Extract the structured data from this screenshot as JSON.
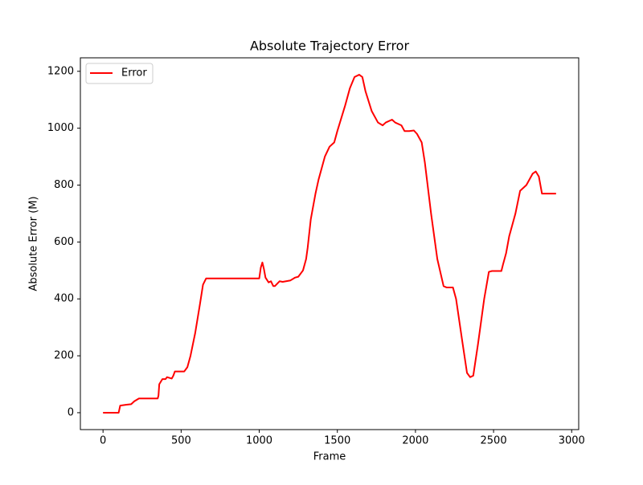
{
  "chart_data": {
    "type": "line",
    "title": "Absolute Trajectory Error",
    "xlabel": "Frame",
    "ylabel": "Absolute Error (M)",
    "x": [
      0,
      100,
      110,
      150,
      180,
      200,
      230,
      350,
      355,
      360,
      380,
      400,
      410,
      440,
      450,
      460,
      520,
      540,
      560,
      590,
      620,
      640,
      660,
      1000,
      1010,
      1020,
      1030,
      1040,
      1060,
      1075,
      1090,
      1100,
      1130,
      1150,
      1200,
      1230,
      1250,
      1280,
      1300,
      1310,
      1330,
      1360,
      1380,
      1420,
      1450,
      1480,
      1500,
      1550,
      1580,
      1610,
      1640,
      1660,
      1680,
      1720,
      1760,
      1790,
      1810,
      1850,
      1870,
      1910,
      1930,
      1960,
      1990,
      2010,
      2040,
      2060,
      2100,
      2140,
      2180,
      2200,
      2240,
      2260,
      2300,
      2330,
      2350,
      2370,
      2400,
      2440,
      2470,
      2490,
      2550,
      2560,
      2580,
      2600,
      2640,
      2670,
      2710,
      2750,
      2770,
      2790,
      2810,
      2850,
      2900
    ],
    "series": [
      {
        "name": "Error",
        "color": "#ff0000",
        "values": [
          0,
          0,
          25,
          28,
          30,
          40,
          50,
          50,
          60,
          100,
          118,
          118,
          125,
          120,
          130,
          145,
          145,
          160,
          200,
          280,
          380,
          450,
          472,
          472,
          510,
          528,
          505,
          475,
          458,
          462,
          445,
          445,
          462,
          460,
          465,
          475,
          478,
          500,
          540,
          580,
          680,
          770,
          820,
          900,
          935,
          950,
          990,
          1080,
          1140,
          1180,
          1188,
          1180,
          1130,
          1060,
          1020,
          1010,
          1020,
          1030,
          1020,
          1010,
          990,
          990,
          992,
          980,
          950,
          880,
          700,
          540,
          445,
          440,
          440,
          400,
          250,
          140,
          125,
          130,
          240,
          400,
          495,
          498,
          498,
          520,
          560,
          620,
          700,
          780,
          800,
          840,
          848,
          830,
          770,
          770,
          770
        ]
      }
    ],
    "xlim": [
      -145,
      3045
    ],
    "ylim": [
      -59.4,
      1247.4
    ],
    "xticks": [
      0,
      500,
      1000,
      1500,
      2000,
      2500,
      3000
    ],
    "yticks": [
      0,
      200,
      400,
      600,
      800,
      1000,
      1200
    ],
    "legend": "upper left"
  }
}
